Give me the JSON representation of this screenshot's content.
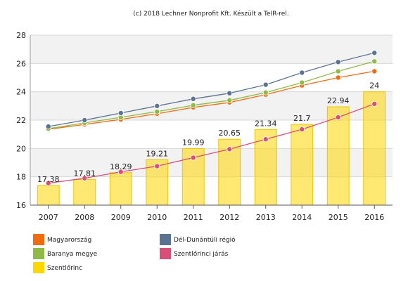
{
  "credit": "(c) 2018 Lechner Nonprofit Kft. Készült a TeIR-rel.",
  "chart_data": {
    "type": "bar",
    "x": [
      "2007",
      "2008",
      "2009",
      "2010",
      "2011",
      "2012",
      "2013",
      "2014",
      "2015",
      "2016"
    ],
    "ylim": [
      16,
      28
    ],
    "yticks": [
      16,
      18,
      20,
      22,
      24,
      26,
      28
    ],
    "bar_series": {
      "name": "Szentlőrinc",
      "values": [
        17.38,
        17.81,
        18.29,
        19.21,
        19.99,
        20.65,
        21.34,
        21.7,
        22.94,
        24
      ],
      "labels": [
        "17.38",
        "17.81",
        "18.29",
        "19.21",
        "19.99",
        "20.65",
        "21.34",
        "21.7",
        "22.94",
        "24"
      ],
      "color": "#ffd700"
    },
    "line_series": [
      {
        "name": "Magyarország",
        "color": "#f26b0f",
        "values": [
          21.35,
          21.7,
          22.05,
          22.45,
          22.9,
          23.25,
          23.8,
          24.45,
          25.0,
          25.45
        ]
      },
      {
        "name": "Baranya megye",
        "color": "#8dbb45",
        "values": [
          21.4,
          21.8,
          22.2,
          22.6,
          23.05,
          23.4,
          23.95,
          24.65,
          25.45,
          26.15
        ]
      },
      {
        "name": "Dél-Dunántúli régió",
        "color": "#5a7393",
        "values": [
          21.55,
          22.0,
          22.5,
          23.0,
          23.5,
          23.9,
          24.5,
          25.35,
          26.1,
          26.75
        ]
      },
      {
        "name": "Szentlőrinci járás",
        "color": "#d94f78",
        "values": [
          17.55,
          17.9,
          18.35,
          18.75,
          19.35,
          19.95,
          20.65,
          21.35,
          22.2,
          23.15
        ]
      }
    ],
    "legend": {
      "position": "bottom",
      "items": [
        {
          "name": "Magyarország",
          "color": "#f26b0f"
        },
        {
          "name": "Dél-Dunántúli régió",
          "color": "#5a7393"
        },
        {
          "name": "Baranya megye",
          "color": "#8dbb45"
        },
        {
          "name": "Szentlőrinci járás",
          "color": "#d94f78"
        },
        {
          "name": "Szentlőrinc",
          "color": "#ffd700"
        }
      ]
    },
    "grid": true
  }
}
